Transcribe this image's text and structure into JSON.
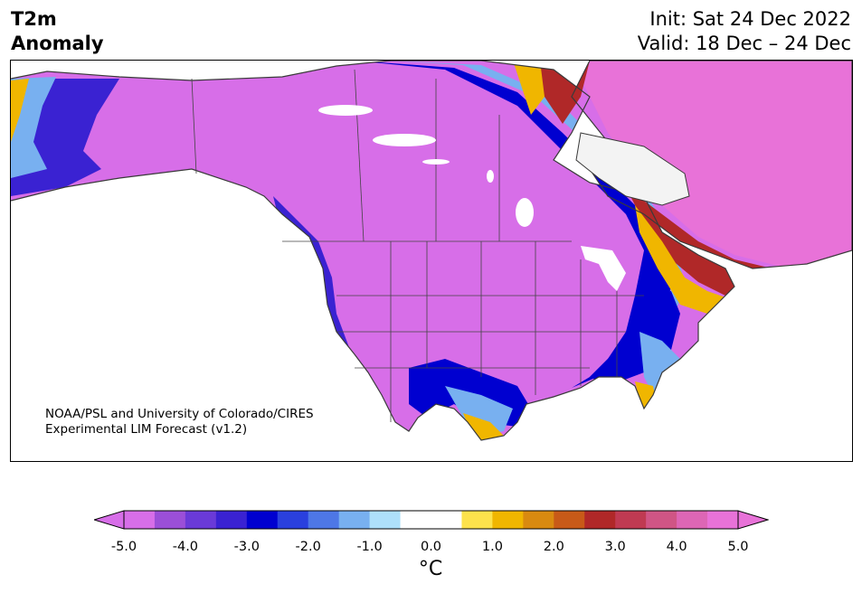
{
  "header": {
    "variable_line1": "T2m",
    "variable_line2": "Anomaly",
    "init": "Init: Sat 24 Dec 2022",
    "valid": "Valid: 18 Dec – 24 Dec"
  },
  "map": {
    "credit_line1": "NOAA/PSL and University of Colorado/CIRES",
    "credit_line2": "Experimental LIM Forecast (v1.2)",
    "region": "North America"
  },
  "colorbar": {
    "unit_label": "°C",
    "colors": [
      "#d76ee8",
      "#9b4fd8",
      "#6a3ad8",
      "#3a22d2",
      "#0000d0",
      "#2a40de",
      "#4e77e6",
      "#78b0f0",
      "#aee0fa",
      "#ffffff",
      "#ffffff",
      "#fde24c",
      "#f0b600",
      "#d98a10",
      "#c85a18",
      "#b02828",
      "#c03a52",
      "#d05585",
      "#dd66b5",
      "#e872d8"
    ],
    "tick_labels": [
      "-5.0",
      "-4.0",
      "-3.0",
      "-2.0",
      "-1.0",
      "0.0",
      "1.0",
      "2.0",
      "3.0",
      "4.0",
      "5.0"
    ]
  }
}
